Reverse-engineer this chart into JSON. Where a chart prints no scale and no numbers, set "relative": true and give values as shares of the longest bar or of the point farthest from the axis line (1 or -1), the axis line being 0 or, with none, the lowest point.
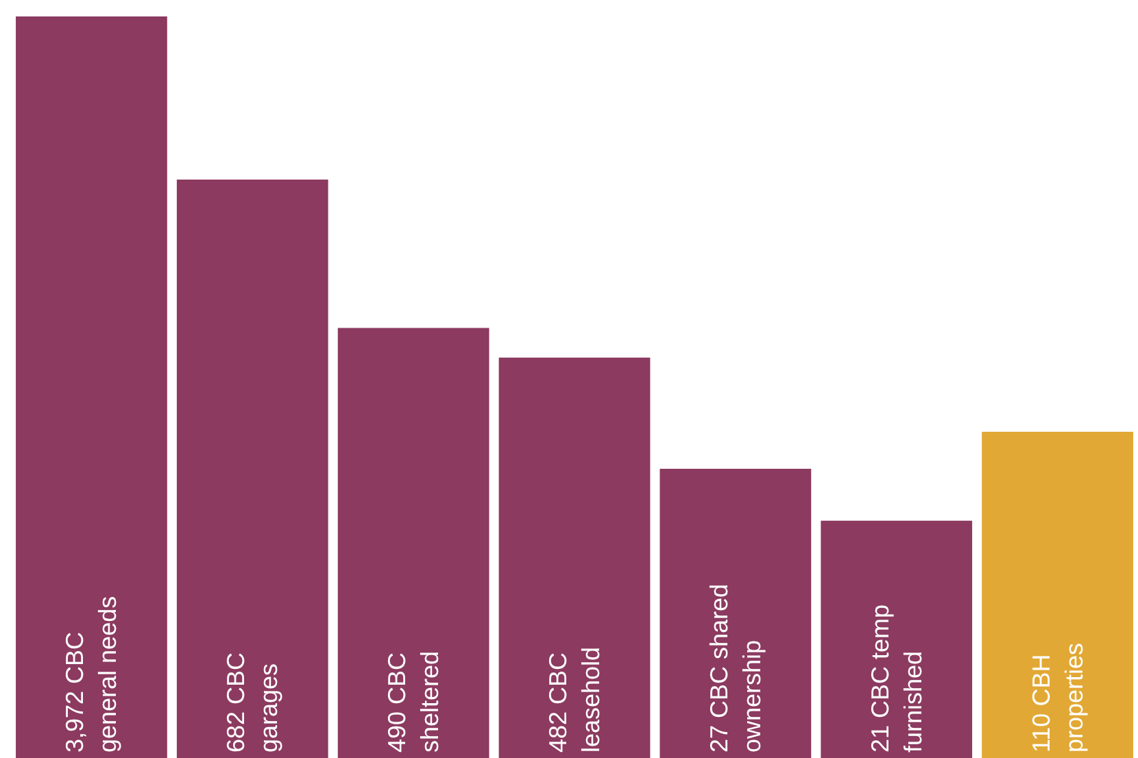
{
  "chart_data": {
    "type": "bar",
    "relative": true,
    "categories": [
      "3,972 CBC\ngeneral needs",
      "682 CBC\ngarages",
      "490 CBC\nsheltered",
      "482 CBC\nleasehold",
      "27 CBC shared\nownership",
      "21 CBC temp\nfurnished",
      "110 CBH\nproperties"
    ],
    "values": [
      1,
      0.78,
      0.58,
      0.54,
      0.39,
      0.32,
      0.44
    ],
    "colors": [
      "#8c3a60",
      "#8c3a60",
      "#8c3a60",
      "#8c3a60",
      "#8c3a60",
      "#8c3a60",
      "#e2a835"
    ],
    "orientation": "vertical"
  }
}
